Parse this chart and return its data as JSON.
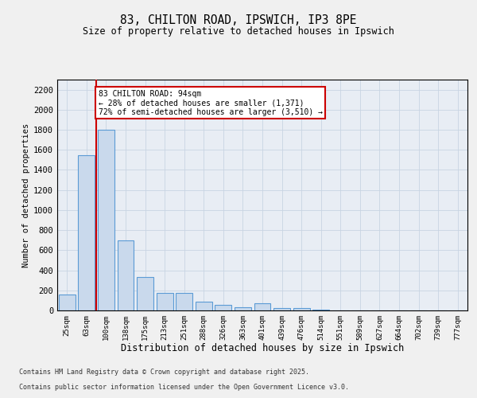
{
  "title1": "83, CHILTON ROAD, IPSWICH, IP3 8PE",
  "title2": "Size of property relative to detached houses in Ipswich",
  "xlabel": "Distribution of detached houses by size in Ipswich",
  "ylabel": "Number of detached properties",
  "categories": [
    "25sqm",
    "63sqm",
    "100sqm",
    "138sqm",
    "175sqm",
    "213sqm",
    "251sqm",
    "288sqm",
    "326sqm",
    "363sqm",
    "401sqm",
    "439sqm",
    "476sqm",
    "514sqm",
    "551sqm",
    "589sqm",
    "627sqm",
    "664sqm",
    "702sqm",
    "739sqm",
    "777sqm"
  ],
  "values": [
    160,
    1550,
    1800,
    700,
    330,
    175,
    175,
    90,
    55,
    35,
    70,
    25,
    20,
    10,
    3,
    2,
    1,
    1,
    1,
    1,
    1
  ],
  "bar_color": "#c9d9ec",
  "bar_edge_color": "#5b9bd5",
  "marker_label": "83 CHILTON ROAD: 94sqm",
  "annotation_line1": "← 28% of detached houses are smaller (1,371)",
  "annotation_line2": "72% of semi-detached houses are larger (3,510) →",
  "annotation_box_color": "#ffffff",
  "annotation_box_edge": "#cc0000",
  "marker_line_color": "#cc0000",
  "ylim": [
    0,
    2300
  ],
  "yticks": [
    0,
    200,
    400,
    600,
    800,
    1000,
    1200,
    1400,
    1600,
    1800,
    2000,
    2200
  ],
  "grid_color": "#c8d4e3",
  "bg_color": "#e8edf4",
  "fig_color": "#f0f0f0",
  "footnote1": "Contains HM Land Registry data © Crown copyright and database right 2025.",
  "footnote2": "Contains public sector information licensed under the Open Government Licence v3.0."
}
